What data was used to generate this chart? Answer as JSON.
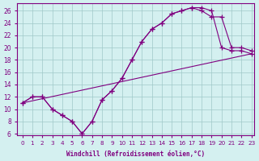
{
  "xlabel": "Windchill (Refroidissement éolien,°C)",
  "bg_color": "#d4f0f0",
  "line_color": "#800080",
  "grid_color": "#a0c8c8",
  "xlim": [
    -0.5,
    23.3
  ],
  "ylim": [
    5.8,
    27.2
  ],
  "yticks": [
    6,
    8,
    10,
    12,
    14,
    16,
    18,
    20,
    22,
    24,
    26
  ],
  "xticks": [
    0,
    1,
    2,
    3,
    4,
    5,
    6,
    7,
    8,
    9,
    10,
    11,
    12,
    13,
    14,
    15,
    16,
    17,
    18,
    19,
    20,
    21,
    22,
    23
  ],
  "line1_x": [
    0,
    1,
    2,
    3,
    4,
    5,
    6,
    7,
    8,
    9,
    10,
    11,
    12,
    13,
    14,
    15,
    16,
    17,
    18,
    19,
    20,
    21,
    22,
    23
  ],
  "line1_y": [
    11,
    12,
    12,
    10,
    9,
    8,
    6,
    8,
    11.5,
    13,
    15,
    18,
    21,
    23,
    24,
    25.5,
    26,
    26.5,
    26.5,
    26,
    20,
    19.5,
    19.5,
    19
  ],
  "line2_x": [
    0,
    1,
    2,
    3,
    4,
    5,
    6,
    7,
    8,
    9,
    10,
    11,
    12,
    13,
    14,
    15,
    16,
    17,
    18,
    19,
    20,
    21,
    22,
    23
  ],
  "line2_y": [
    11,
    12,
    12,
    10,
    9,
    8,
    6,
    8,
    11.5,
    13,
    15,
    18,
    21,
    23,
    24,
    25.5,
    26,
    26.5,
    26,
    25,
    25,
    20,
    20,
    19.5
  ],
  "line3_x": [
    0,
    23
  ],
  "line3_y": [
    11,
    19
  ]
}
